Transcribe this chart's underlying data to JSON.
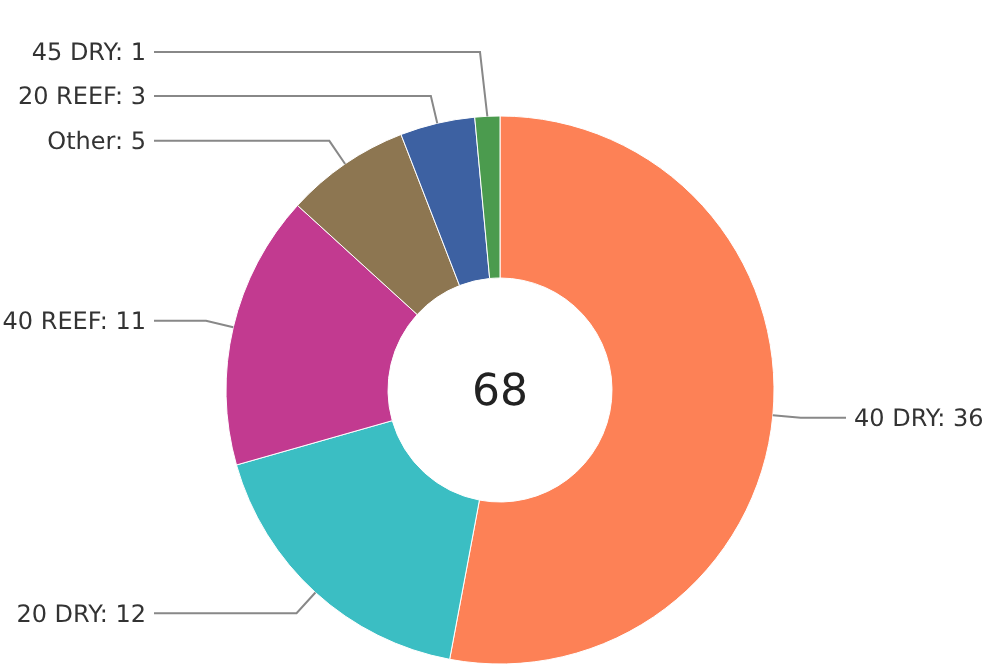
{
  "chart_data": {
    "type": "donut",
    "categories": [
      "40 DRY",
      "20 DRY",
      "40 REEF",
      "Other",
      "20 REEF",
      "45 DRY"
    ],
    "values": [
      36,
      12,
      11,
      5,
      3,
      1
    ],
    "colors": [
      "#fd8156",
      "#3bbec3",
      "#c23a90",
      "#8d7651",
      "#3d61a2",
      "#4b9b4e"
    ],
    "annotations": [
      "68"
    ],
    "value_labels": [
      ": 36",
      ": 12",
      ": 11",
      ": 5",
      ": 3",
      ": 1"
    ]
  }
}
